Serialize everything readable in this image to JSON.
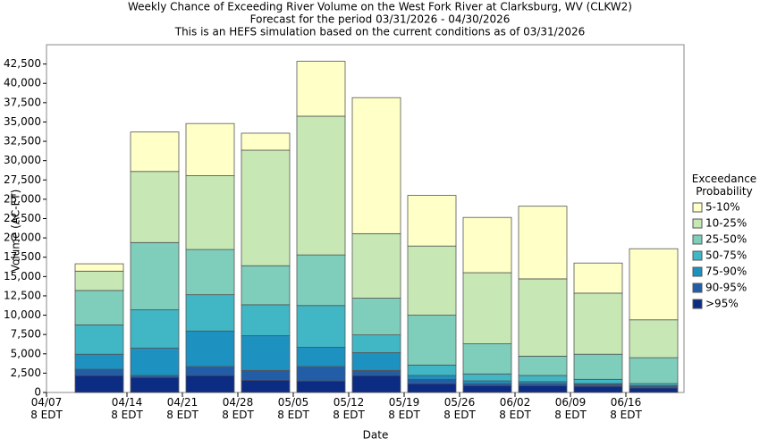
{
  "chart_data": {
    "type": "stacked_bar",
    "title": "Weekly Chance of Exceeding River Volume on the West Fork River at Clarksburg, WV (CLKW2)",
    "subtitle": "Forecast for the period 03/31/2026 - 04/30/2026",
    "note": "This is an HEFS simulation based on the current conditions as of 03/31/2026",
    "x_label": "Date",
    "y_label": "Volume (AC-FT)",
    "legend_title": "Exceedance Probability",
    "categories": [
      "04/07 8 EDT",
      "04/14 8 EDT",
      "04/21 8 EDT",
      "04/28 8 EDT",
      "05/05 8 EDT",
      "05/12 8 EDT",
      "05/19 8 EDT",
      "05/26 8 EDT",
      "06/02 8 EDT",
      "06/09 8 EDT",
      "06/16 8 EDT"
    ],
    "series": [
      {
        "name": "5-10%",
        "color": "#ffffc8",
        "values": [
          950,
          5100,
          6750,
          2200,
          7100,
          17600,
          6550,
          7150,
          9400,
          3900,
          9200
        ]
      },
      {
        "name": "10-25%",
        "color": "#c7e8b5",
        "values": [
          2500,
          9200,
          9550,
          14950,
          17950,
          8350,
          8950,
          9200,
          10000,
          7900,
          4900
        ]
      },
      {
        "name": "25-50%",
        "color": "#7fcdbb",
        "values": [
          4450,
          8700,
          5850,
          5050,
          6550,
          4750,
          6450,
          3900,
          2500,
          3250,
          3350
        ]
      },
      {
        "name": "50-75%",
        "color": "#41b6c4",
        "values": [
          3800,
          4950,
          4700,
          4000,
          5400,
          2300,
          1350,
          900,
          800,
          550,
          250
        ]
      },
      {
        "name": "75-90%",
        "color": "#1d91c0",
        "values": [
          1950,
          3550,
          4600,
          4500,
          2500,
          2300,
          500,
          350,
          250,
          100,
          100
        ]
      },
      {
        "name": "90-95%",
        "color": "#225ea8",
        "values": [
          800,
          250,
          1150,
          1250,
          1850,
          650,
          550,
          250,
          250,
          250,
          200
        ]
      },
      {
        "name": ">95%",
        "color": "#0c2c84",
        "values": [
          2200,
          1950,
          2200,
          1600,
          1500,
          2200,
          1150,
          900,
          900,
          800,
          600
        ]
      }
    ],
    "ylim": [
      0,
      45000
    ],
    "yticks": [
      0,
      {
        "value": 2500,
        "label": "2,500"
      },
      {
        "value": 5000,
        "label": "5,000"
      },
      {
        "value": 7500,
        "label": "7,500"
      },
      {
        "value": 10000,
        "label": "10,000"
      },
      {
        "value": 12500,
        "label": "12,500"
      },
      {
        "value": 15000,
        "label": "15,000"
      },
      {
        "value": 17500,
        "label": "17,500"
      },
      {
        "value": 20000,
        "label": "20,000"
      },
      {
        "value": 22500,
        "label": "22,500"
      },
      {
        "value": 25000,
        "label": "25,000"
      },
      {
        "value": 27500,
        "label": "27,500"
      },
      {
        "value": 30000,
        "label": "30,000"
      },
      {
        "value": 32500,
        "label": "32,500"
      },
      {
        "value": 35000,
        "label": "35,000"
      },
      {
        "value": 37500,
        "label": "37,500"
      },
      {
        "value": 40000,
        "label": "40,000"
      },
      {
        "value": 42500,
        "label": "42,500"
      }
    ],
    "grid": false
  }
}
